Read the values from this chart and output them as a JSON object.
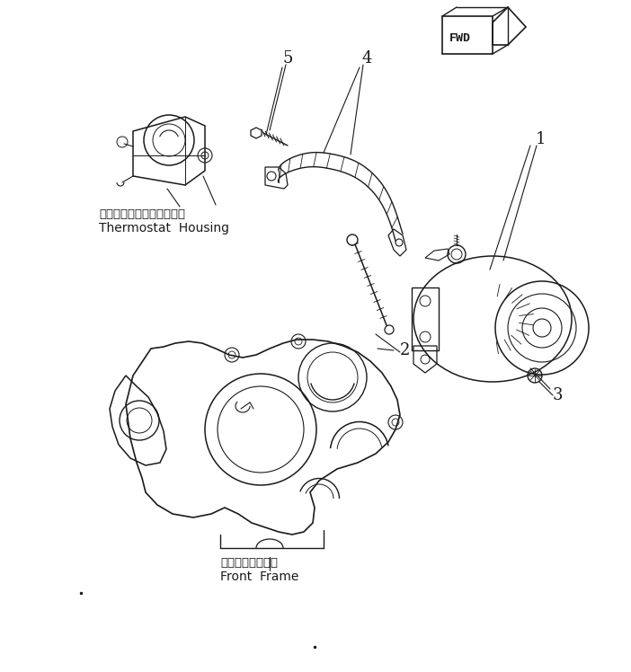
{
  "bg_color": "#ffffff",
  "line_color": "#1a1a1a",
  "figsize": [
    7.02,
    7.48
  ],
  "dpi": 100,
  "thermostat_label_jp": "サーモスタットハウジング",
  "thermostat_label_en": "Thermostat  Housing",
  "front_frame_label_jp": "フロントフレーム",
  "front_frame_label_en": "Front  Frame",
  "font_size_label": 13,
  "font_size_part": 10,
  "font_size_jp": 9.5
}
